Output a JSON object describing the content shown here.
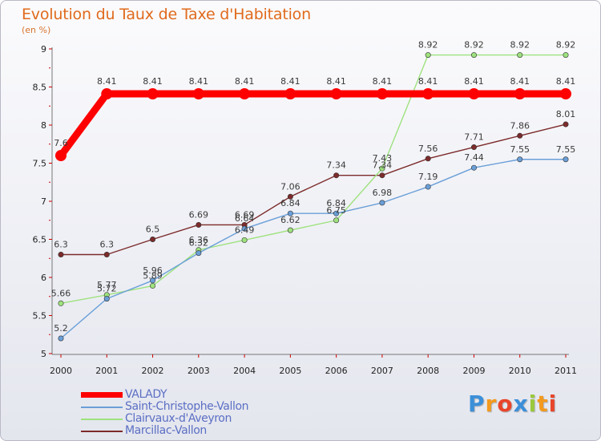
{
  "header": {
    "title": "Evolution du Taux de Taxe d'Habitation",
    "unit": "(en %)"
  },
  "chart_data": {
    "type": "line",
    "title": "Evolution du Taux de Taxe d'Habitation",
    "ylabel": "(en %)",
    "xlabel": "",
    "x": [
      2000,
      2001,
      2002,
      2003,
      2004,
      2005,
      2006,
      2007,
      2008,
      2009,
      2010,
      2011
    ],
    "ylim": [
      5,
      9
    ],
    "yticks": [
      5,
      5.5,
      6,
      6.5,
      7,
      7.5,
      8,
      8.5,
      9
    ],
    "grid": false,
    "legend": "bottom-left",
    "series": [
      {
        "name": "VALADY",
        "color": "#ff0000",
        "values": [
          7.6,
          8.41,
          8.41,
          8.41,
          8.41,
          8.41,
          8.41,
          8.41,
          8.41,
          8.41,
          8.41,
          8.41
        ]
      },
      {
        "name": "Saint-Christophe-Vallon",
        "color": "#6a9fd8",
        "values": [
          5.2,
          5.72,
          5.96,
          6.32,
          6.64,
          6.84,
          6.84,
          6.98,
          7.19,
          7.44,
          7.55,
          7.55
        ]
      },
      {
        "name": "Clairvaux-d'Aveyron",
        "color": "#9ee27e",
        "values": [
          5.66,
          5.77,
          5.89,
          6.36,
          6.49,
          6.62,
          6.75,
          7.43,
          8.92,
          8.92,
          8.92,
          8.92
        ]
      },
      {
        "name": "Marcillac-Vallon",
        "color": "#7c2b2b",
        "values": [
          6.3,
          6.3,
          6.5,
          6.69,
          6.69,
          7.06,
          7.34,
          7.34,
          7.56,
          7.71,
          7.86,
          8.01
        ]
      }
    ]
  },
  "logo": {
    "text": "Proxiti",
    "letters": [
      "P",
      "r",
      "o",
      "x",
      "i",
      "t",
      "i"
    ],
    "colors": [
      "#3b8fd9",
      "#f39a1e",
      "#e8452b",
      "#3b8fd9",
      "#9bc93a",
      "#f39a1e",
      "#e8452b"
    ]
  }
}
